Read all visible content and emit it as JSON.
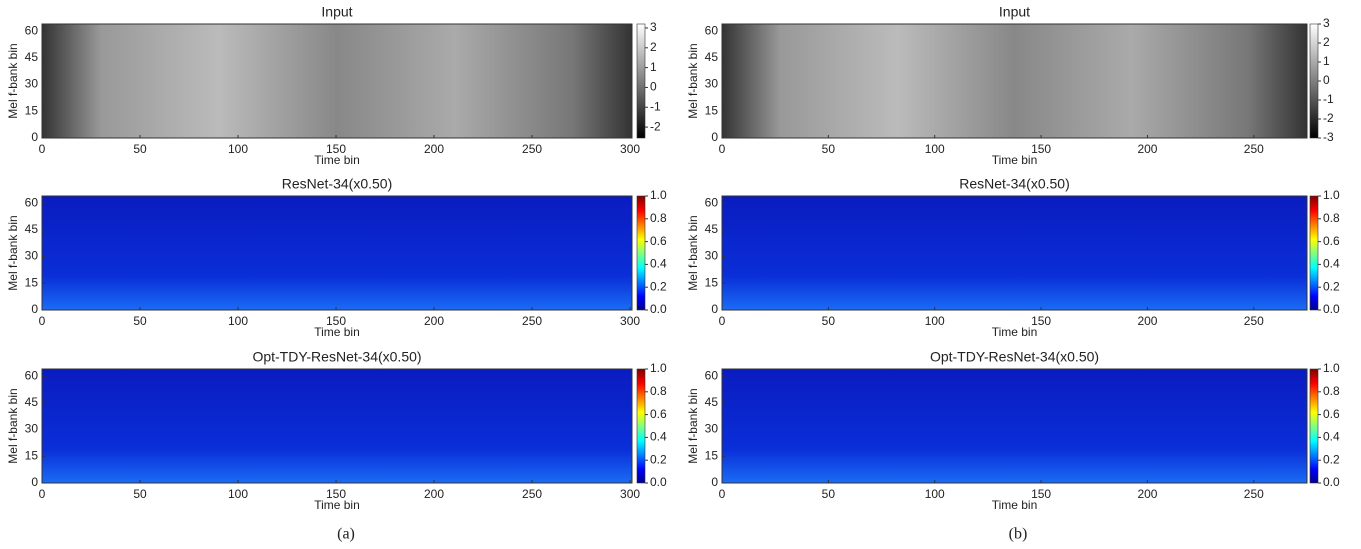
{
  "chart_data": [
    {
      "type": "heatmap",
      "title": "Input",
      "xlabel": "Time bin",
      "ylabel": "Mel f-bank bin",
      "colormap": "gray",
      "xlim": [
        0,
        301
      ],
      "ylim": [
        0,
        64
      ],
      "xticks": [
        0,
        50,
        100,
        150,
        200,
        250,
        300
      ],
      "yticks": [
        0,
        15,
        30,
        45,
        60
      ],
      "clim": [
        -2.55,
        3.2
      ],
      "cticks": [
        -2,
        -1,
        0,
        1,
        2,
        3
      ]
    },
    {
      "type": "heatmap",
      "title": "Input",
      "xlabel": "Time bin",
      "ylabel": "Mel f-bank bin",
      "colormap": "gray",
      "xlim": [
        0,
        275
      ],
      "ylim": [
        0,
        64
      ],
      "xticks": [
        0,
        50,
        100,
        150,
        200,
        250
      ],
      "yticks": [
        0,
        15,
        30,
        45,
        60
      ],
      "clim": [
        -3,
        3
      ],
      "cticks": [
        -3,
        -2,
        -1,
        0,
        1,
        2,
        3
      ]
    },
    {
      "type": "heatmap",
      "title": "ResNet-34(x0.50)",
      "xlabel": "Time bin",
      "ylabel": "Mel f-bank bin",
      "colormap": "jet",
      "xlim": [
        0,
        301
      ],
      "ylim": [
        0,
        64
      ],
      "xticks": [
        0,
        50,
        100,
        150,
        200,
        250,
        300
      ],
      "yticks": [
        0,
        15,
        30,
        45,
        60
      ],
      "clim": [
        0,
        1
      ],
      "cticks": [
        {
          "value": 0,
          "label": "0.0"
        },
        0.2,
        0.4,
        0.6,
        0.8,
        {
          "value": 1,
          "label": "1.0"
        }
      ]
    },
    {
      "type": "heatmap",
      "title": "ResNet-34(x0.50)",
      "xlabel": "Time bin",
      "ylabel": "Mel f-bank bin",
      "colormap": "jet",
      "xlim": [
        0,
        275
      ],
      "ylim": [
        0,
        64
      ],
      "xticks": [
        0,
        50,
        100,
        150,
        200,
        250
      ],
      "yticks": [
        0,
        15,
        30,
        45,
        60
      ],
      "clim": [
        0,
        1
      ],
      "cticks": [
        {
          "value": 0,
          "label": "0.0"
        },
        0.2,
        0.4,
        0.6,
        0.8,
        {
          "value": 1,
          "label": "1.0"
        }
      ]
    },
    {
      "type": "heatmap",
      "title": "Opt-TDY-ResNet-34(x0.50)",
      "xlabel": "Time bin",
      "ylabel": "Mel f-bank bin",
      "colormap": "jet",
      "xlim": [
        0,
        301
      ],
      "ylim": [
        0,
        64
      ],
      "xticks": [
        0,
        50,
        100,
        150,
        200,
        250,
        300
      ],
      "yticks": [
        0,
        15,
        30,
        45,
        60
      ],
      "clim": [
        0,
        1
      ],
      "cticks": [
        {
          "value": 0,
          "label": "0.0"
        },
        0.2,
        0.4,
        0.6,
        0.8,
        {
          "value": 1,
          "label": "1.0"
        }
      ]
    },
    {
      "type": "heatmap",
      "title": "Opt-TDY-ResNet-34(x0.50)",
      "xlabel": "Time bin",
      "ylabel": "Mel f-bank bin",
      "colormap": "jet",
      "xlim": [
        0,
        275
      ],
      "ylim": [
        0,
        64
      ],
      "xticks": [
        0,
        50,
        100,
        150,
        200,
        250
      ],
      "yticks": [
        0,
        15,
        30,
        45,
        60
      ],
      "clim": [
        0,
        1
      ],
      "cticks": [
        {
          "value": 0,
          "label": "0.0"
        },
        0.2,
        0.4,
        0.6,
        0.8,
        {
          "value": 1,
          "label": "1.0"
        }
      ]
    }
  ],
  "captions": [
    "(a)",
    "(b)"
  ]
}
